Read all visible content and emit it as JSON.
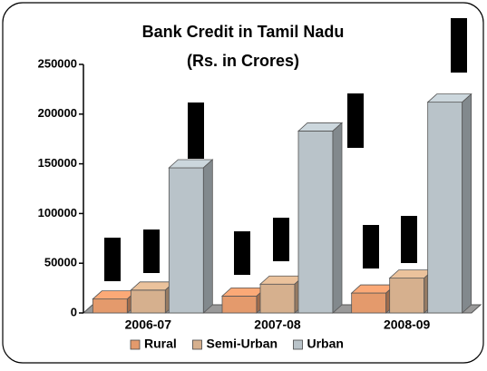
{
  "chart_data": {
    "type": "bar3d",
    "title": "Bank Credit in Tamil Nadu",
    "subtitle": "(Rs. in Crores)",
    "categories": [
      "2006-07",
      "2007-08",
      "2008-09"
    ],
    "series": [
      {
        "name": "Rural",
        "color": "#e49a6c",
        "values": [
          14000,
          17000,
          20000
        ]
      },
      {
        "name": "Semi-Urban",
        "color": "#d6b08e",
        "values": [
          23000,
          29000,
          35000
        ]
      },
      {
        "name": "Urban",
        "color": "#b9c3c9",
        "values": [
          146000,
          183000,
          212000
        ]
      }
    ],
    "ylim": [
      0,
      250000
    ],
    "yticks": [
      0,
      50000,
      100000,
      150000,
      200000,
      250000
    ],
    "legend": "bottom"
  }
}
